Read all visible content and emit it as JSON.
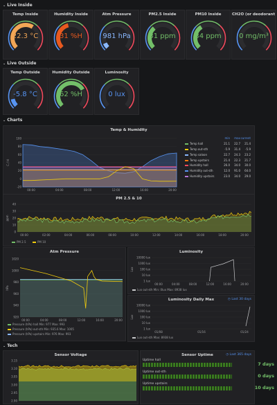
{
  "rows": {
    "live_inside": "Live Inside",
    "live_outside": "Live Outside",
    "charts": "Charts",
    "tech": "Tech"
  },
  "inside_gauges": [
    {
      "title": "Temp Inside",
      "value": "22.3 °C",
      "level": 0.62,
      "color": "#f2a656"
    },
    {
      "title": "Humidity Inside",
      "value": "31 %H",
      "level": 0.45,
      "color": "#e8591f"
    },
    {
      "title": "Atm Pressure",
      "value": "981 hPa",
      "level": 0.08,
      "color": "#8ab8ff"
    },
    {
      "title": "PM2.5 Inside",
      "value": "31 ppm",
      "level": 0.35,
      "color": "#73bf69"
    },
    {
      "title": "PM10 Inside",
      "value": "34 ppm",
      "level": 0.38,
      "color": "#73bf69"
    },
    {
      "title": "CH2O (or deodorant ...",
      "value": "0 mg/m³",
      "level": 0.0,
      "color": "#73bf69"
    }
  ],
  "outside_gauges": [
    {
      "title": "Temp Outside",
      "value": "-5.8 °C",
      "level": 0.12,
      "color": "#5794f2"
    },
    {
      "title": "Humidity Outside",
      "value": "62 %H",
      "level": 0.72,
      "color": "#73bf69"
    },
    {
      "title": "Luminosity",
      "value": "0 lux",
      "level": 0.0,
      "color": "#5794f2"
    }
  ],
  "temp_chart": {
    "title": "Temp & Humidity",
    "ylabel": "C / H",
    "y_ticks": [
      "100",
      "80",
      "60",
      "40",
      "20",
      "0",
      "-20"
    ],
    "x_ticks": [
      "00:00",
      "04:00",
      "08:00",
      "12:00",
      "16:00",
      "20:00"
    ],
    "legend_headers": [
      "min",
      "max",
      "current"
    ],
    "legend": [
      {
        "name": "Temp hall",
        "min": "21.1",
        "max": "22.7",
        "current": "21.4",
        "color": "#73bf69"
      },
      {
        "name": "Temp out-sth",
        "min": "-5.9",
        "max": "31.4",
        "current": "-5.9",
        "color": "#f2cc0c"
      },
      {
        "name": "Temp saloon",
        "min": "22.7",
        "max": "24.3",
        "current": "23.2",
        "color": "#8ab8ff"
      },
      {
        "name": "Temp upstairs",
        "min": "21.4",
        "max": "22.3",
        "current": "21.7",
        "color": "#ff780a"
      },
      {
        "name": "Humidity hall",
        "min": "26.0",
        "max": "34.0",
        "current": "30.0",
        "color": "#f2495c"
      },
      {
        "name": "Humidity out-sth",
        "min": "12.0",
        "max": "91.0",
        "current": "64.0",
        "color": "#5794f2"
      },
      {
        "name": "Humidity upstairs",
        "min": "23.0",
        "max": "34.0",
        "current": "29.0",
        "color": "#b877d9"
      }
    ]
  },
  "pm_chart": {
    "title": "PM 2.5 & 10",
    "ylabel": "ppm",
    "y_ticks": [
      "40",
      "30",
      "20",
      "10",
      "0"
    ],
    "x_ticks": [
      "00:00",
      "02:00",
      "04:00",
      "06:00",
      "08:00",
      "10:00",
      "12:00",
      "14:00",
      "16:00",
      "18:00",
      "20:00"
    ],
    "legend": [
      {
        "name": "PM 2.5",
        "color": "#73bf69"
      },
      {
        "name": "PM 10",
        "color": "#f2cc0c"
      }
    ]
  },
  "atm_chart": {
    "title": "Atm Pressure",
    "ylabel": "hPa",
    "y_ticks": [
      "1020",
      "1000",
      "980",
      "960",
      "940",
      "920"
    ],
    "x_ticks": [
      "00:00",
      "04:00",
      "08:00",
      "12:00",
      "16:00",
      "20:00"
    ],
    "legend": [
      {
        "name": "Pressure (hPa) hall Min: 977  Max: 993",
        "color": "#73bf69"
      },
      {
        "name": "Pressure (hPa) out-sth  Min: 935.6  Max: 1005",
        "color": "#f2cc0c"
      },
      {
        "name": "Pressure (hPa) upstairs  Min: 976  Max: 993",
        "color": "#8ab8ff"
      }
    ]
  },
  "lum_chart": {
    "title": "Luminosity",
    "ylabel": "Lux",
    "y_ticks": [
      "10000 lux",
      "1000 lux",
      "100 lux",
      "10 lux",
      "1 lux"
    ],
    "x_ticks": [
      "00:00",
      "04:00",
      "08:00",
      "12:00",
      "16:00",
      "20:00"
    ],
    "legend": "Lux out-sth  Min: 0lux  Max: 8938 lux"
  },
  "lum_daily": {
    "title": "Luminosity Daily Max",
    "range_badge": "Last 30 days",
    "ylabel": "Lux",
    "y_ticks": [
      "10000 lux",
      "1000 lux",
      "100 lux",
      "10 lux",
      "1 lux"
    ],
    "x_ticks": [
      "01/08",
      "01/16",
      "01/24"
    ],
    "legend": "Lux out-sth  Max: 8938 lux"
  },
  "voltage": {
    "title": "Sensor Voltage",
    "y_ticks": [
      "3.15",
      "3.10",
      "3.05",
      "3.00",
      "2.95",
      "2.90"
    ]
  },
  "uptime": {
    "title": "Sensor Uptime",
    "range_badge": "Last 365 days",
    "items": [
      {
        "label": "Uptime hall",
        "value": "7 days",
        "level": 0.85
      },
      {
        "label": "Uptime out-sth",
        "value": "0 days",
        "level": 0.85
      },
      {
        "label": "Uptime upstairs",
        "value": "10 days",
        "level": 0.85
      }
    ]
  }
}
